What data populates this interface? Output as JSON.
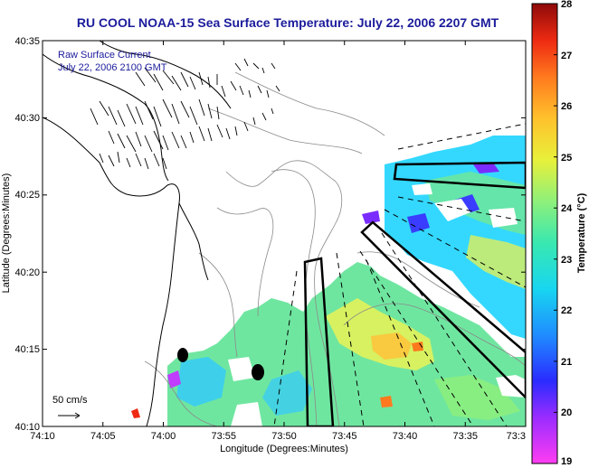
{
  "title": "RU COOL  NOAA-15  Sea Surface Temperature:  July 22, 2006 2207 GMT",
  "legend": {
    "line1": "Raw Surface Current",
    "line2": "July 22, 2006 2100 GMT",
    "scale_label": "50 cm/s"
  },
  "axes": {
    "xlabel": "Longitude (Degrees:Minutes)",
    "ylabel": "Latitude (Degrees:Minutes)",
    "x_ticks": [
      "74:10",
      "74:05",
      "74:00",
      "73:55",
      "73:50",
      "73:45",
      "73:40",
      "73:35",
      "73:3"
    ],
    "y_ticks": [
      "40:35",
      "40:30",
      "40:25",
      "40:20",
      "40:15",
      "40:10"
    ]
  },
  "colorbar": {
    "label": "Temperature (°C)",
    "ticks": [
      "28",
      "27",
      "26",
      "25",
      "24",
      "23",
      "22",
      "21",
      "20",
      "19"
    ],
    "min": 19,
    "max": 28
  },
  "colors": {
    "title": "#1c1c9c",
    "land_outline": "#000000"
  }
}
